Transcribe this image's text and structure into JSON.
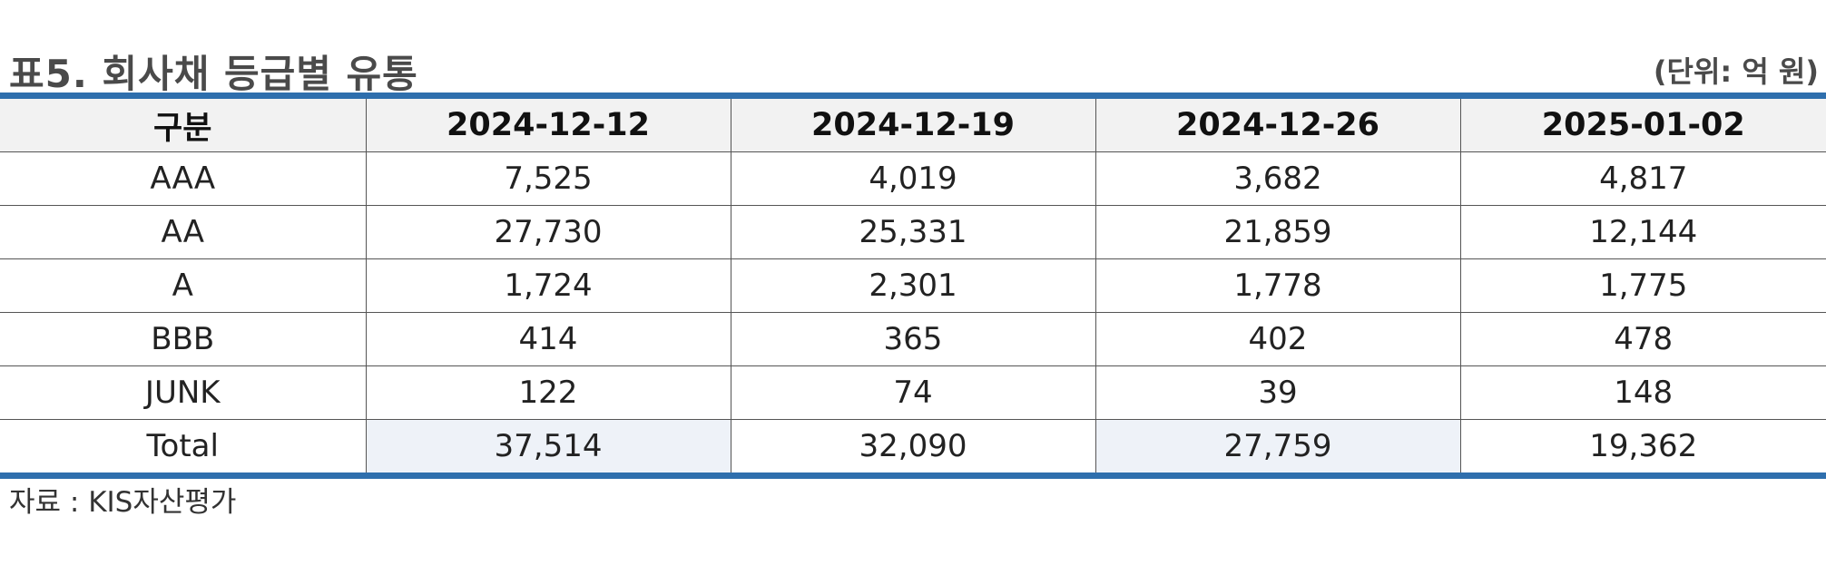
{
  "title": "표5. 회사채 등급별 유통",
  "unit": "(단위: 억 원)",
  "table": {
    "headers": [
      "구분",
      "2024-12-12",
      "2024-12-19",
      "2024-12-26",
      "2025-01-02"
    ],
    "rows": [
      [
        "AAA",
        "7,525",
        "4,019",
        "3,682",
        "4,817"
      ],
      [
        "AA",
        "27,730",
        "25,331",
        "21,859",
        "12,144"
      ],
      [
        "A",
        "1,724",
        "2,301",
        "1,778",
        "1,775"
      ],
      [
        "BBB",
        "414",
        "365",
        "402",
        "478"
      ],
      [
        "JUNK",
        "122",
        "74",
        "39",
        "148"
      ]
    ],
    "total": [
      "Total",
      "37,514",
      "32,090",
      "27,759",
      "19,362"
    ]
  },
  "source": "자료 : KIS자산평가",
  "colors": {
    "rule": "#2f6fad",
    "header_bg": "#f2f2f2",
    "total_bg": "#eef2f8"
  }
}
